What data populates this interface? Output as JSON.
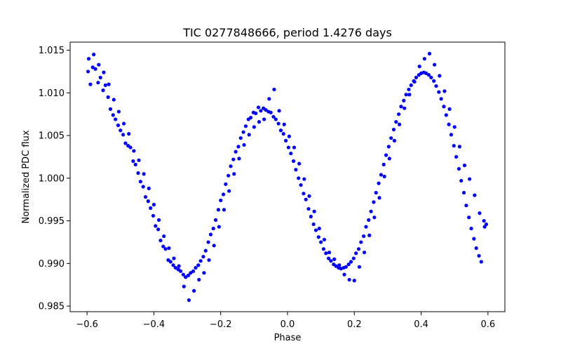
{
  "chart_data": {
    "type": "scatter",
    "title": "TIC 0277848666, period 1.4276 days",
    "xlabel": "Phase",
    "ylabel": "Normalized PDC flux",
    "xlim": [
      -0.6507,
      0.6507
    ],
    "ylim": [
      0.98435,
      1.01595
    ],
    "xticks": [
      -0.6,
      -0.4,
      -0.2,
      0.0,
      0.2,
      0.4,
      0.6
    ],
    "xtick_labels": [
      "−0.6",
      "−0.4",
      "−0.2",
      "0.0",
      "0.2",
      "0.4",
      "0.6"
    ],
    "yticks": [
      0.985,
      0.99,
      0.995,
      1.0,
      1.005,
      1.01,
      1.015
    ],
    "ytick_labels": [
      "0.985",
      "0.990",
      "0.995",
      "1.000",
      "1.005",
      "1.010",
      "1.015"
    ],
    "grid": false,
    "marker_color": "#0000ff",
    "series": [
      {
        "points": [
          [
            -0.597,
            1.0125
          ],
          [
            -0.59,
            1.011
          ],
          [
            -0.583,
            1.013
          ],
          [
            -0.575,
            1.0128
          ],
          [
            -0.567,
            1.0112
          ],
          [
            -0.56,
            1.0118
          ],
          [
            -0.552,
            1.0103
          ],
          [
            -0.545,
            1.0109
          ],
          [
            -0.537,
            1.0095
          ],
          [
            -0.53,
            1.0081
          ],
          [
            -0.522,
            1.0074
          ],
          [
            -0.515,
            1.0069
          ],
          [
            -0.507,
            1.0062
          ],
          [
            -0.5,
            1.0056
          ],
          [
            -0.492,
            1.0051
          ],
          [
            -0.485,
            1.0041
          ],
          [
            -0.477,
            1.0038
          ],
          [
            -0.47,
            1.0036
          ],
          [
            -0.462,
            1.002
          ],
          [
            -0.455,
            1.0016
          ],
          [
            -0.447,
            1.0006
          ],
          [
            -0.44,
            0.9996
          ],
          [
            -0.432,
            0.999
          ],
          [
            -0.425,
            0.9978
          ],
          [
            -0.417,
            0.9973
          ],
          [
            -0.41,
            0.9965
          ],
          [
            -0.402,
            0.9956
          ],
          [
            -0.395,
            0.9944
          ],
          [
            -0.387,
            0.994
          ],
          [
            -0.38,
            0.9927
          ],
          [
            -0.372,
            0.992
          ],
          [
            -0.365,
            0.9917
          ],
          [
            -0.357,
            0.9904
          ],
          [
            -0.35,
            0.9902
          ],
          [
            -0.342,
            0.9898
          ],
          [
            -0.335,
            0.9895
          ],
          [
            -0.327,
            0.9893
          ],
          [
            -0.32,
            0.9891
          ],
          [
            -0.312,
            0.9887
          ],
          [
            -0.305,
            0.9884
          ],
          [
            -0.297,
            0.9886
          ],
          [
            -0.29,
            0.9889
          ],
          [
            -0.282,
            0.9891
          ],
          [
            -0.275,
            0.9895
          ],
          [
            -0.267,
            0.9898
          ],
          [
            -0.26,
            0.9903
          ],
          [
            -0.252,
            0.9908
          ],
          [
            -0.245,
            0.9915
          ],
          [
            -0.237,
            0.9925
          ],
          [
            -0.23,
            0.9934
          ],
          [
            -0.222,
            0.9941
          ],
          [
            -0.215,
            0.9951
          ],
          [
            -0.207,
            0.9963
          ],
          [
            -0.2,
            0.9974
          ],
          [
            -0.192,
            0.9981
          ],
          [
            -0.185,
            0.9993
          ],
          [
            -0.177,
            1.0003
          ],
          [
            -0.17,
            1.0014
          ],
          [
            -0.162,
            1.0022
          ],
          [
            -0.155,
            1.0031
          ],
          [
            -0.147,
            1.0037
          ],
          [
            -0.14,
            1.0047
          ],
          [
            -0.132,
            1.0054
          ],
          [
            -0.125,
            1.0061
          ],
          [
            -0.117,
            1.0069
          ],
          [
            -0.11,
            1.0071
          ],
          [
            -0.102,
            1.0077
          ],
          [
            -0.095,
            1.0076
          ],
          [
            -0.087,
            1.0083
          ],
          [
            -0.08,
            1.0079
          ],
          [
            -0.072,
            1.0082
          ],
          [
            -0.065,
            1.008
          ],
          [
            -0.057,
            1.0078
          ],
          [
            -0.05,
            1.0077
          ],
          [
            -0.042,
            1.0072
          ],
          [
            -0.035,
            1.0069
          ],
          [
            -0.027,
            1.0064
          ],
          [
            -0.02,
            1.0056
          ],
          [
            -0.012,
            1.0052
          ],
          [
            -0.005,
            1.0044
          ],
          [
            0.003,
            1.0036
          ],
          [
            0.01,
            1.0029
          ],
          [
            0.018,
            1.002
          ],
          [
            0.025,
            1.001
          ],
          [
            0.033,
            1.0
          ],
          [
            0.04,
            0.9992
          ],
          [
            0.048,
            0.9982
          ],
          [
            0.055,
            0.9975
          ],
          [
            0.063,
            0.9964
          ],
          [
            0.07,
            0.9955
          ],
          [
            0.078,
            0.9946
          ],
          [
            0.085,
            0.9939
          ],
          [
            0.093,
            0.9931
          ],
          [
            0.1,
            0.9925
          ],
          [
            0.108,
            0.9917
          ],
          [
            0.115,
            0.9912
          ],
          [
            0.123,
            0.9906
          ],
          [
            0.13,
            0.9903
          ],
          [
            0.138,
            0.9899
          ],
          [
            0.145,
            0.9897
          ],
          [
            0.153,
            0.9895
          ],
          [
            0.16,
            0.9894
          ],
          [
            0.168,
            0.9895
          ],
          [
            0.175,
            0.9896
          ],
          [
            0.183,
            0.9899
          ],
          [
            0.19,
            0.9902
          ],
          [
            0.198,
            0.9906
          ],
          [
            0.205,
            0.9912
          ],
          [
            0.213,
            0.9917
          ],
          [
            0.22,
            0.9925
          ],
          [
            0.228,
            0.9932
          ],
          [
            0.235,
            0.9943
          ],
          [
            0.243,
            0.9951
          ],
          [
            0.25,
            0.9961
          ],
          [
            0.258,
            0.9972
          ],
          [
            0.265,
            0.9983
          ],
          [
            0.273,
            0.9994
          ],
          [
            0.28,
            1.0004
          ],
          [
            0.288,
            1.0016
          ],
          [
            0.295,
            1.0027
          ],
          [
            0.303,
            1.0037
          ],
          [
            0.31,
            1.0047
          ],
          [
            0.318,
            1.0057
          ],
          [
            0.325,
            1.0066
          ],
          [
            0.333,
            1.0075
          ],
          [
            0.34,
            1.0084
          ],
          [
            0.348,
            1.0091
          ],
          [
            0.355,
            1.0098
          ],
          [
            0.363,
            1.0104
          ],
          [
            0.37,
            1.0109
          ],
          [
            0.378,
            1.0114
          ],
          [
            0.385,
            1.0118
          ],
          [
            0.393,
            1.0121
          ],
          [
            0.4,
            1.0123
          ],
          [
            0.408,
            1.0124
          ],
          [
            0.415,
            1.0123
          ],
          [
            0.423,
            1.0121
          ],
          [
            0.43,
            1.0118
          ],
          [
            0.438,
            1.0114
          ],
          [
            0.445,
            1.0108
          ],
          [
            0.453,
            1.0101
          ],
          [
            0.46,
            1.0093
          ],
          [
            0.468,
            1.0084
          ],
          [
            0.475,
            1.0074
          ],
          [
            0.483,
            1.0063
          ],
          [
            0.49,
            1.0051
          ],
          [
            0.498,
            1.0038
          ],
          [
            0.505,
            1.0025
          ],
          [
            0.513,
            1.0011
          ],
          [
            0.52,
            0.9997
          ],
          [
            0.528,
            0.9983
          ],
          [
            0.535,
            0.9968
          ],
          [
            0.543,
            0.9954
          ],
          [
            0.55,
            0.9941
          ],
          [
            0.558,
            0.9929
          ],
          [
            0.565,
            0.9918
          ],
          [
            0.573,
            0.9909
          ],
          [
            0.58,
            0.9902
          ],
          [
            0.588,
            0.995
          ],
          [
            0.595,
            0.9946
          ],
          [
            -0.595,
            1.014
          ],
          [
            -0.58,
            1.0145
          ],
          [
            -0.565,
            1.0133
          ],
          [
            -0.55,
            1.0124
          ],
          [
            -0.535,
            1.011
          ],
          [
            -0.52,
            1.0092
          ],
          [
            -0.505,
            1.0078
          ],
          [
            -0.49,
            1.0064
          ],
          [
            -0.475,
            1.0052
          ],
          [
            -0.46,
            1.0032
          ],
          [
            -0.445,
            1.0021
          ],
          [
            -0.43,
            1.0005
          ],
          [
            -0.415,
            0.9988
          ],
          [
            -0.4,
            0.9969
          ],
          [
            -0.385,
            0.9951
          ],
          [
            -0.37,
            0.9932
          ],
          [
            -0.355,
            0.9918
          ],
          [
            -0.34,
            0.9906
          ],
          [
            -0.325,
            0.9897
          ],
          [
            -0.31,
            0.9873
          ],
          [
            -0.295,
            0.9857
          ],
          [
            -0.28,
            0.9868
          ],
          [
            -0.265,
            0.9881
          ],
          [
            -0.25,
            0.9889
          ],
          [
            -0.235,
            0.9904
          ],
          [
            -0.22,
            0.9921
          ],
          [
            -0.205,
            0.9943
          ],
          [
            -0.19,
            0.9963
          ],
          [
            -0.175,
            0.9985
          ],
          [
            -0.16,
            1.0005
          ],
          [
            -0.145,
            1.0023
          ],
          [
            -0.13,
            1.0039
          ],
          [
            -0.115,
            1.0051
          ],
          [
            -0.1,
            1.006
          ],
          [
            -0.085,
            1.0066
          ],
          [
            -0.07,
            1.0069
          ],
          [
            -0.055,
            1.0093
          ],
          [
            -0.04,
            1.0104
          ],
          [
            -0.025,
            1.0079
          ],
          [
            -0.01,
            1.0063
          ],
          [
            0.005,
            1.0049
          ],
          [
            0.02,
            1.0036
          ],
          [
            0.035,
            1.0017
          ],
          [
            0.05,
            0.9999
          ],
          [
            0.065,
            0.9979
          ],
          [
            0.08,
            0.9961
          ],
          [
            0.095,
            0.9941
          ],
          [
            0.11,
            0.9928
          ],
          [
            0.125,
            0.9913
          ],
          [
            0.14,
            0.9905
          ],
          [
            0.155,
            0.9898
          ],
          [
            0.17,
            0.9887
          ],
          [
            0.185,
            0.9881
          ],
          [
            0.2,
            0.988
          ],
          [
            0.215,
            0.9896
          ],
          [
            0.23,
            0.9913
          ],
          [
            0.245,
            0.9933
          ],
          [
            0.26,
            0.9954
          ],
          [
            0.275,
            0.9977
          ],
          [
            0.29,
            1.0002
          ],
          [
            0.305,
            1.0023
          ],
          [
            0.32,
            1.0044
          ],
          [
            0.335,
            1.0063
          ],
          [
            0.35,
            1.0082
          ],
          [
            0.365,
            1.0098
          ],
          [
            0.38,
            1.0113
          ],
          [
            0.395,
            1.0131
          ],
          [
            0.41,
            1.014
          ],
          [
            0.425,
            1.0146
          ],
          [
            0.44,
            1.0133
          ],
          [
            0.455,
            1.012
          ],
          [
            0.47,
            1.0102
          ],
          [
            0.485,
            1.0081
          ],
          [
            0.5,
            1.006
          ],
          [
            0.515,
            1.0037
          ],
          [
            0.53,
            1.0015
          ],
          [
            0.545,
            0.9999
          ],
          [
            0.56,
            0.998
          ],
          [
            0.575,
            0.9959
          ],
          [
            0.59,
            0.9943
          ]
        ]
      }
    ]
  }
}
